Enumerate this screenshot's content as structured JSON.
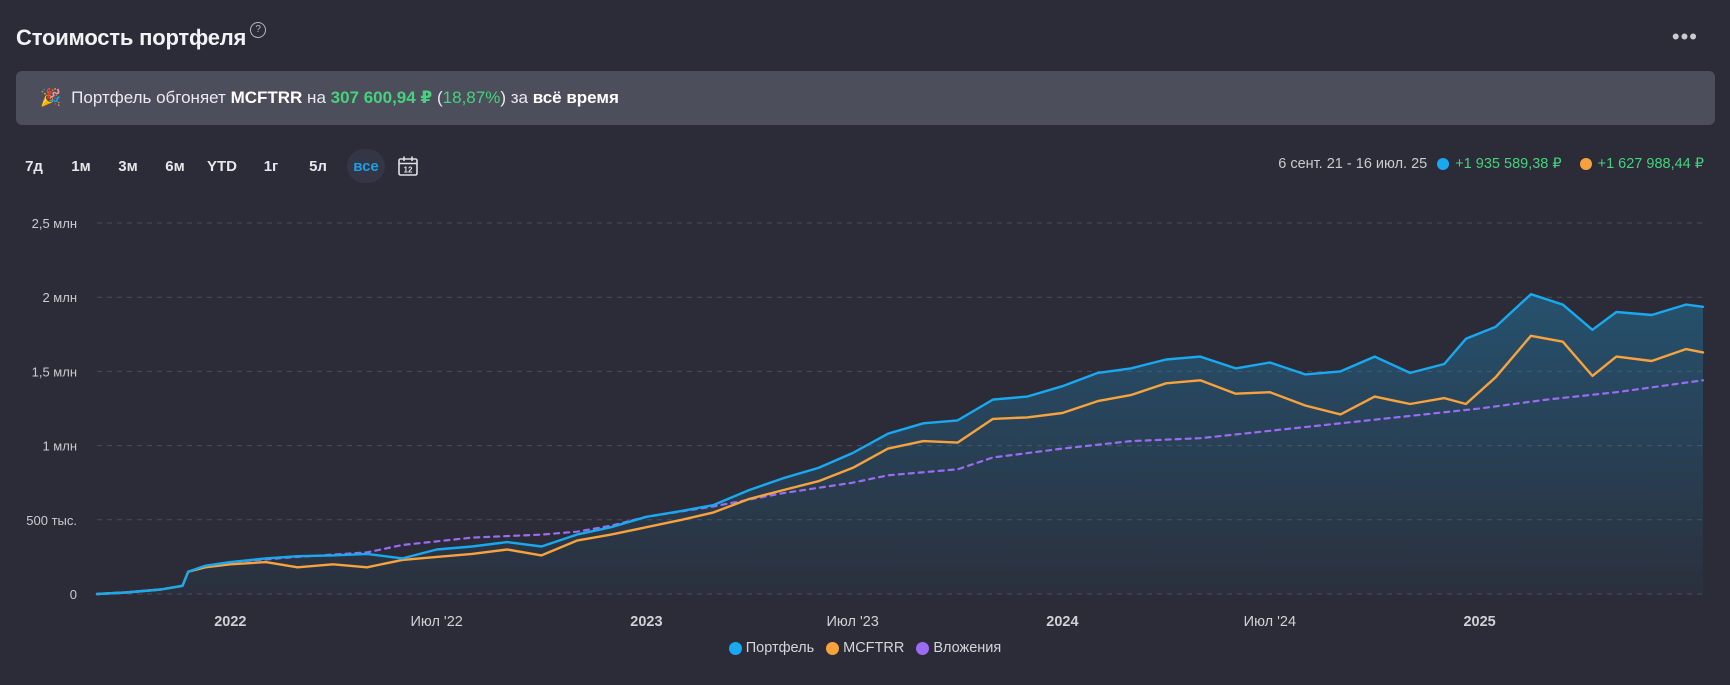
{
  "header": {
    "title": "Стоимость портфеля",
    "help": "?",
    "more": "•••"
  },
  "banner": {
    "emoji": "🎉",
    "text1": "Портфель обгоняет ",
    "index": "MCFTRR",
    "text2": " на ",
    "amount": "307 600,94 ₽",
    "text3": " (",
    "percent": "18,87%",
    "text4": ") за ",
    "period": "всё время"
  },
  "periods": [
    {
      "label": "7д",
      "active": false
    },
    {
      "label": "1м",
      "active": false
    },
    {
      "label": "3м",
      "active": false
    },
    {
      "label": "6м",
      "active": false
    },
    {
      "label": "YTD",
      "active": false
    },
    {
      "label": "1г",
      "active": false
    },
    {
      "label": "5л",
      "active": false
    },
    {
      "label": "все",
      "active": true
    }
  ],
  "calendar": {
    "icon": "calendar-icon",
    "day": "12"
  },
  "summary": {
    "range": "6 сент. 21 - 16 июл. 25",
    "portfolio_change": "+1 935 589,38 ₽",
    "index_change": "+1 627 988,44 ₽"
  },
  "colors": {
    "portfolio": "#19a9f0",
    "index": "#f7a23c",
    "invested": "#9b6cf2",
    "positive": "#46d27c",
    "background": "#2b2c37"
  },
  "chart_data": {
    "type": "line",
    "y_ticks": [
      {
        "value": 0,
        "label": "0"
      },
      {
        "value": 500000,
        "label": "500 тыс."
      },
      {
        "value": 1000000,
        "label": "1 млн"
      },
      {
        "value": 1500000,
        "label": "1,5 млн"
      },
      {
        "value": 2000000,
        "label": "2 млн"
      },
      {
        "value": 2500000,
        "label": "2,5 млн"
      }
    ],
    "ylim": [
      0,
      2500000
    ],
    "xlim": [
      "2021-09-06",
      "2025-07-16"
    ],
    "x_ticks": [
      {
        "date": "2022-01-01",
        "label": "2022"
      },
      {
        "date": "2022-07-01",
        "label": "Июл '22"
      },
      {
        "date": "2023-01-01",
        "label": "2023"
      },
      {
        "date": "2023-07-01",
        "label": "Июл '23"
      },
      {
        "date": "2024-01-01",
        "label": "2024"
      },
      {
        "date": "2024-07-01",
        "label": "Июл '24"
      },
      {
        "date": "2025-01-01",
        "label": "2025"
      }
    ],
    "grid": true,
    "legend_position": "bottom",
    "series": [
      {
        "name": "Портфель",
        "style": "solid-area",
        "points": [
          [
            "2021-09-06",
            0
          ],
          [
            "2021-10-01",
            10000
          ],
          [
            "2021-11-01",
            30000
          ],
          [
            "2021-11-20",
            55000
          ],
          [
            "2021-11-25",
            150000
          ],
          [
            "2021-12-10",
            190000
          ],
          [
            "2022-01-01",
            215000
          ],
          [
            "2022-02-01",
            240000
          ],
          [
            "2022-03-01",
            255000
          ],
          [
            "2022-04-01",
            260000
          ],
          [
            "2022-05-01",
            270000
          ],
          [
            "2022-06-01",
            240000
          ],
          [
            "2022-07-01",
            300000
          ],
          [
            "2022-08-01",
            320000
          ],
          [
            "2022-09-01",
            350000
          ],
          [
            "2022-10-01",
            320000
          ],
          [
            "2022-11-01",
            400000
          ],
          [
            "2022-12-01",
            450000
          ],
          [
            "2023-01-01",
            520000
          ],
          [
            "2023-02-01",
            560000
          ],
          [
            "2023-03-01",
            600000
          ],
          [
            "2023-04-01",
            700000
          ],
          [
            "2023-05-01",
            780000
          ],
          [
            "2023-06-01",
            850000
          ],
          [
            "2023-07-01",
            950000
          ],
          [
            "2023-08-01",
            1080000
          ],
          [
            "2023-09-01",
            1150000
          ],
          [
            "2023-10-01",
            1170000
          ],
          [
            "2023-11-01",
            1310000
          ],
          [
            "2023-12-01",
            1330000
          ],
          [
            "2024-01-01",
            1400000
          ],
          [
            "2024-02-01",
            1490000
          ],
          [
            "2024-03-01",
            1520000
          ],
          [
            "2024-04-01",
            1580000
          ],
          [
            "2024-05-01",
            1600000
          ],
          [
            "2024-06-01",
            1520000
          ],
          [
            "2024-07-01",
            1560000
          ],
          [
            "2024-08-01",
            1480000
          ],
          [
            "2024-09-01",
            1500000
          ],
          [
            "2024-10-01",
            1600000
          ],
          [
            "2024-11-01",
            1490000
          ],
          [
            "2024-12-01",
            1550000
          ],
          [
            "2024-12-20",
            1720000
          ],
          [
            "2025-01-15",
            1800000
          ],
          [
            "2025-02-15",
            2020000
          ],
          [
            "2025-03-15",
            1950000
          ],
          [
            "2025-04-10",
            1780000
          ],
          [
            "2025-05-01",
            1900000
          ],
          [
            "2025-06-01",
            1880000
          ],
          [
            "2025-07-01",
            1950000
          ],
          [
            "2025-07-16",
            1935589
          ]
        ]
      },
      {
        "name": "MCFTRR",
        "style": "solid",
        "points": [
          [
            "2021-09-06",
            0
          ],
          [
            "2021-10-01",
            10000
          ],
          [
            "2021-11-01",
            30000
          ],
          [
            "2021-11-20",
            55000
          ],
          [
            "2021-11-25",
            150000
          ],
          [
            "2021-12-10",
            180000
          ],
          [
            "2022-01-01",
            200000
          ],
          [
            "2022-02-01",
            215000
          ],
          [
            "2022-03-01",
            180000
          ],
          [
            "2022-04-01",
            200000
          ],
          [
            "2022-05-01",
            180000
          ],
          [
            "2022-06-01",
            230000
          ],
          [
            "2022-07-01",
            250000
          ],
          [
            "2022-08-01",
            270000
          ],
          [
            "2022-09-01",
            300000
          ],
          [
            "2022-10-01",
            260000
          ],
          [
            "2022-11-01",
            360000
          ],
          [
            "2022-12-01",
            400000
          ],
          [
            "2023-01-01",
            450000
          ],
          [
            "2023-02-01",
            500000
          ],
          [
            "2023-03-01",
            550000
          ],
          [
            "2023-04-01",
            640000
          ],
          [
            "2023-05-01",
            700000
          ],
          [
            "2023-06-01",
            760000
          ],
          [
            "2023-07-01",
            850000
          ],
          [
            "2023-08-01",
            980000
          ],
          [
            "2023-09-01",
            1030000
          ],
          [
            "2023-10-01",
            1020000
          ],
          [
            "2023-11-01",
            1180000
          ],
          [
            "2023-12-01",
            1190000
          ],
          [
            "2024-01-01",
            1220000
          ],
          [
            "2024-02-01",
            1300000
          ],
          [
            "2024-03-01",
            1340000
          ],
          [
            "2024-04-01",
            1420000
          ],
          [
            "2024-05-01",
            1440000
          ],
          [
            "2024-06-01",
            1350000
          ],
          [
            "2024-07-01",
            1360000
          ],
          [
            "2024-08-01",
            1270000
          ],
          [
            "2024-09-01",
            1210000
          ],
          [
            "2024-10-01",
            1330000
          ],
          [
            "2024-11-01",
            1280000
          ],
          [
            "2024-12-01",
            1320000
          ],
          [
            "2024-12-20",
            1280000
          ],
          [
            "2025-01-15",
            1460000
          ],
          [
            "2025-02-15",
            1740000
          ],
          [
            "2025-03-15",
            1700000
          ],
          [
            "2025-04-10",
            1470000
          ],
          [
            "2025-05-01",
            1600000
          ],
          [
            "2025-06-01",
            1570000
          ],
          [
            "2025-07-01",
            1650000
          ],
          [
            "2025-07-16",
            1627988
          ]
        ]
      },
      {
        "name": "Вложения",
        "style": "dashed",
        "points": [
          [
            "2021-09-06",
            0
          ],
          [
            "2021-10-01",
            10000
          ],
          [
            "2021-11-01",
            30000
          ],
          [
            "2021-11-20",
            55000
          ],
          [
            "2021-11-25",
            150000
          ],
          [
            "2021-12-10",
            190000
          ],
          [
            "2022-01-01",
            215000
          ],
          [
            "2022-03-01",
            250000
          ],
          [
            "2022-05-01",
            280000
          ],
          [
            "2022-06-01",
            330000
          ],
          [
            "2022-08-01",
            380000
          ],
          [
            "2022-10-01",
            400000
          ],
          [
            "2022-11-01",
            420000
          ],
          [
            "2022-12-01",
            460000
          ],
          [
            "2023-01-01",
            520000
          ],
          [
            "2023-03-01",
            590000
          ],
          [
            "2023-05-01",
            680000
          ],
          [
            "2023-07-01",
            750000
          ],
          [
            "2023-08-01",
            800000
          ],
          [
            "2023-10-01",
            840000
          ],
          [
            "2023-11-01",
            920000
          ],
          [
            "2024-01-01",
            980000
          ],
          [
            "2024-03-01",
            1030000
          ],
          [
            "2024-05-01",
            1050000
          ],
          [
            "2024-07-01",
            1100000
          ],
          [
            "2024-09-01",
            1150000
          ],
          [
            "2024-11-01",
            1200000
          ],
          [
            "2025-01-01",
            1250000
          ],
          [
            "2025-03-01",
            1310000
          ],
          [
            "2025-05-01",
            1360000
          ],
          [
            "2025-07-16",
            1440000
          ]
        ]
      }
    ]
  }
}
